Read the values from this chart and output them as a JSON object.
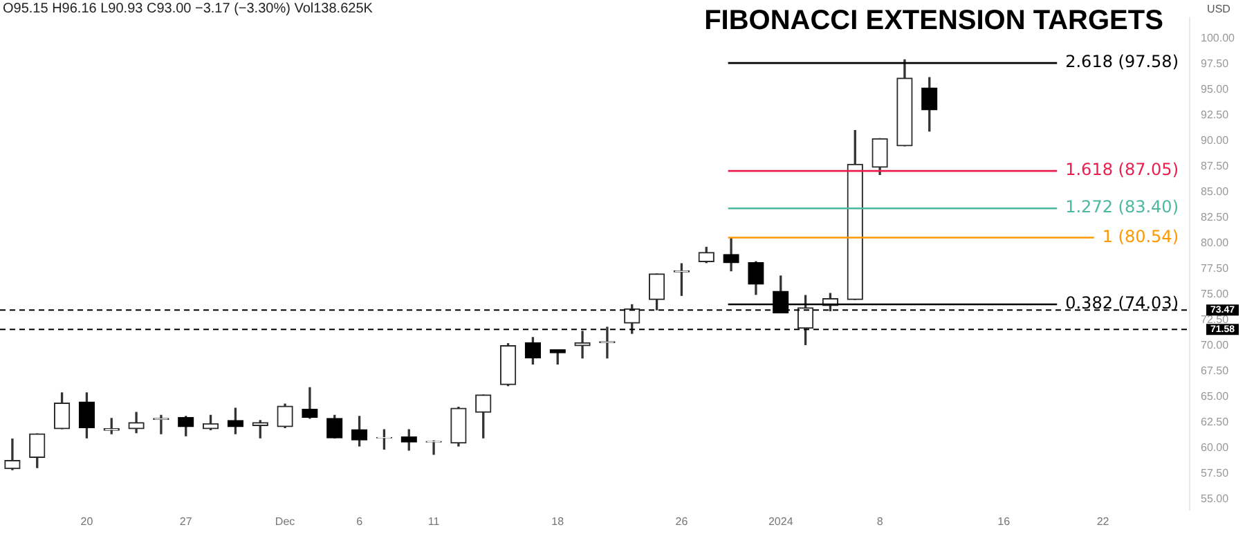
{
  "chart_data": {
    "type": "candlestick",
    "title": "FIBONACCI EXTENSION TARGETS",
    "ylabel": "USD",
    "annotations": [
      "O95.15 H96.16 L90.93 C93.00 −3.17 (−3.30%) Vol138.625K"
    ],
    "categories": [
      null,
      null,
      null,
      "20",
      null,
      null,
      null,
      "27",
      null,
      null,
      null,
      "Dec",
      null,
      null,
      "6",
      null,
      null,
      "11",
      null,
      null,
      null,
      null,
      "18",
      null,
      null,
      null,
      null,
      "26",
      null,
      null,
      null,
      "2024",
      null,
      null,
      null,
      "8",
      null,
      null,
      null,
      null,
      "16",
      null,
      null,
      null,
      "22",
      null,
      null,
      null
    ],
    "ohlc": [
      [
        58.0,
        60.9,
        57.9,
        58.8
      ],
      [
        59.1,
        61.4,
        58.1,
        61.4
      ],
      [
        61.9,
        65.4,
        61.9,
        64.4
      ],
      [
        64.5,
        65.4,
        61.0,
        62.0
      ],
      [
        61.75,
        62.9,
        61.4,
        61.9
      ],
      [
        61.9,
        63.5,
        61.5,
        62.5
      ],
      [
        62.8,
        63.2,
        61.4,
        62.9
      ],
      [
        63.0,
        63.1,
        61.2,
        62.1
      ],
      [
        61.9,
        63.2,
        61.8,
        62.4
      ],
      [
        62.7,
        63.9,
        61.4,
        62.1
      ],
      [
        62.2,
        62.7,
        61.0,
        62.5
      ],
      [
        62.1,
        64.3,
        62.0,
        64.1
      ],
      [
        63.8,
        65.9,
        62.9,
        63.0
      ],
      [
        62.9,
        63.2,
        61.0,
        61.0
      ],
      [
        61.8,
        63.1,
        60.2,
        60.8
      ],
      [
        61.0,
        61.8,
        59.9,
        61.05
      ],
      [
        61.1,
        61.8,
        59.8,
        60.6
      ],
      [
        60.6,
        60.7,
        59.4,
        60.65
      ],
      [
        60.5,
        64.0,
        60.2,
        63.9
      ],
      [
        63.5,
        65.2,
        61.0,
        65.2
      ],
      [
        66.2,
        70.2,
        66.1,
        70.0
      ],
      [
        70.3,
        70.8,
        68.2,
        68.8
      ],
      [
        69.6,
        69.6,
        68.2,
        69.3
      ],
      [
        70.0,
        71.4,
        68.8,
        70.3
      ],
      [
        70.3,
        71.8,
        68.8,
        70.4
      ],
      [
        72.2,
        74.0,
        71.2,
        73.6
      ],
      [
        74.5,
        77.0,
        73.5,
        77.0
      ],
      [
        77.2,
        78.0,
        74.9,
        77.3
      ],
      [
        78.2,
        79.6,
        78.1,
        79.1
      ],
      [
        78.9,
        80.5,
        77.3,
        78.1
      ],
      [
        78.1,
        78.2,
        75.0,
        76.0
      ],
      [
        75.3,
        76.8,
        73.2,
        73.2
      ],
      [
        71.7,
        74.9,
        70.1,
        73.7
      ],
      [
        73.9,
        75.1,
        73.4,
        74.6
      ],
      [
        74.5,
        91.0,
        74.5,
        87.7
      ],
      [
        87.4,
        90.2,
        86.7,
        90.2
      ],
      [
        89.5,
        97.9,
        89.5,
        96.1
      ],
      [
        95.15,
        96.16,
        90.93,
        93.0
      ],
      null,
      null,
      null,
      null,
      null,
      null,
      null,
      null,
      null,
      null
    ],
    "ylim": [
      54,
      102
    ],
    "yticks": [
      {
        "value": 55,
        "label": "55.00"
      },
      {
        "value": 57.5,
        "label": "57.50"
      },
      {
        "value": 60,
        "label": "60.00"
      },
      {
        "value": 62.5,
        "label": "62.50"
      },
      {
        "value": 65,
        "label": "65.00"
      },
      {
        "value": 67.5,
        "label": "67.50"
      },
      {
        "value": 70,
        "label": "70.00"
      },
      {
        "value": 72.5,
        "label": "72.50"
      },
      {
        "value": 75,
        "label": "75.00"
      },
      {
        "value": 77.5,
        "label": "77.50"
      },
      {
        "value": 80,
        "label": "80.00"
      },
      {
        "value": 82.5,
        "label": "82.50"
      },
      {
        "value": 85,
        "label": "85.00"
      },
      {
        "value": 87.5,
        "label": "87.50"
      },
      {
        "value": 90,
        "label": "90.00"
      },
      {
        "value": 92.5,
        "label": "92.50"
      },
      {
        "value": 95,
        "label": "95.00"
      },
      {
        "value": 97.5,
        "label": "97.50"
      },
      {
        "value": 100,
        "label": "100.00"
      }
    ],
    "ref_lines": [
      {
        "axis": "y",
        "value": 97.58,
        "label": "2.618 (97.58)",
        "color": "#000000"
      },
      {
        "axis": "y",
        "value": 87.05,
        "label": "1.618 (87.05)",
        "color": "#e91e4d"
      },
      {
        "axis": "y",
        "value": 83.4,
        "label": "1.272 (83.40)",
        "color": "#4cb8a0"
      },
      {
        "axis": "y",
        "value": 80.54,
        "label": "1 (80.54)",
        "color": "#ff9800"
      },
      {
        "axis": "y",
        "value": 74.03,
        "label": "0.382 (74.03)",
        "color": "#000000"
      },
      {
        "axis": "y",
        "value": 73.47,
        "label": "73.47",
        "color": "#000000",
        "line_style": "dashed"
      },
      {
        "axis": "y",
        "value": 71.58,
        "label": "71.58",
        "color": "#000000",
        "line_style": "dashed"
      }
    ],
    "grid": false,
    "legend": false
  }
}
